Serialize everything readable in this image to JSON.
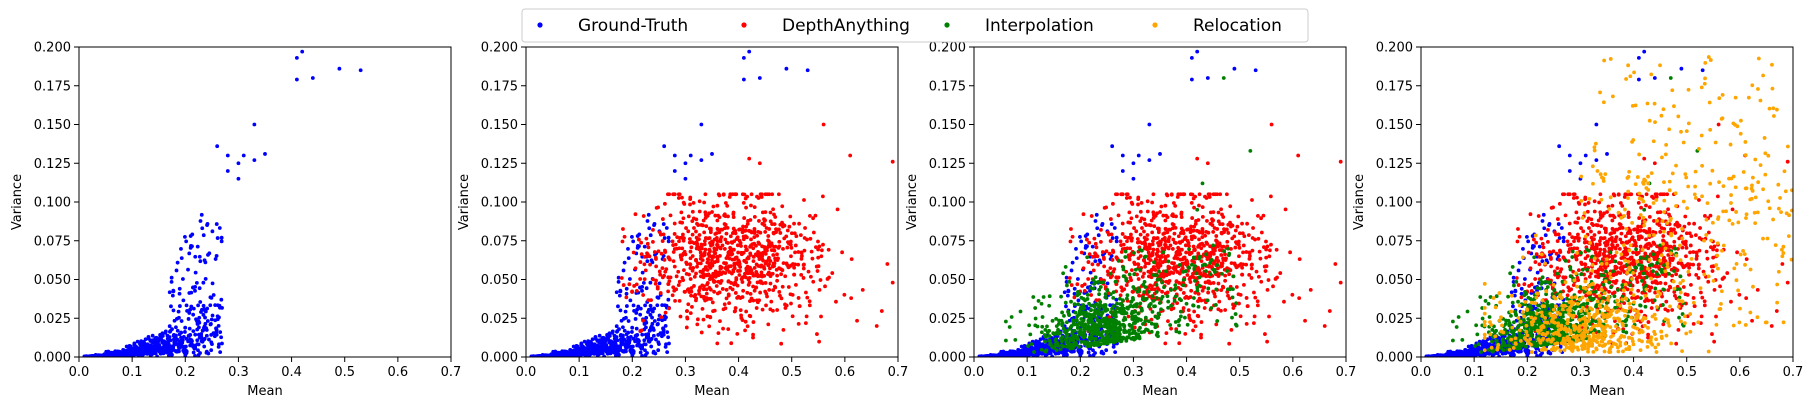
{
  "chart_data": {
    "type": "scatter",
    "layout": "1x4 panels with shared legend at top-center",
    "legend": [
      {
        "name": "Ground-Truth",
        "color": "#0000ff"
      },
      {
        "name": "DepthAnything",
        "color": "#ff0000"
      },
      {
        "name": "Interpolation",
        "color": "#008000"
      },
      {
        "name": "Relocation",
        "color": "#ffa500"
      }
    ],
    "xlabel": "Mean",
    "ylabel": "Variance",
    "xlim": [
      0.0,
      0.7
    ],
    "ylim": [
      0.0,
      0.2
    ],
    "xticks": [
      "0.0",
      "0.1",
      "0.2",
      "0.3",
      "0.4",
      "0.5",
      "0.6",
      "0.7"
    ],
    "yticks": [
      "0.000",
      "0.025",
      "0.050",
      "0.075",
      "0.100",
      "0.125",
      "0.150",
      "0.175",
      "0.200"
    ],
    "series_distribution": {
      "Ground-Truth": {
        "description": "dense cluster near origin rising with mean; sparse outliers",
        "generated_points": 700,
        "x_range": [
          0.01,
          0.27
        ],
        "outliers": [
          [
            0.41,
            0.193
          ],
          [
            0.42,
            0.197
          ],
          [
            0.41,
            0.179
          ],
          [
            0.44,
            0.18
          ],
          [
            0.49,
            0.186
          ],
          [
            0.53,
            0.185
          ],
          [
            0.33,
            0.15
          ],
          [
            0.26,
            0.136
          ],
          [
            0.28,
            0.13
          ],
          [
            0.3,
            0.125
          ],
          [
            0.31,
            0.13
          ],
          [
            0.3,
            0.115
          ],
          [
            0.35,
            0.131
          ],
          [
            0.33,
            0.127
          ],
          [
            0.28,
            0.12
          ]
        ]
      },
      "DepthAnything": {
        "description": "broad cloud centered around mean 0.38, variance 0.06",
        "generated_points": 900,
        "center": [
          0.38,
          0.062
        ]
      },
      "Interpolation": {
        "description": "cluster centered around mean 0.24, variance 0.02",
        "generated_points": 700,
        "center": [
          0.24,
          0.022
        ]
      },
      "Relocation": {
        "description": "wide spread from 0.15 to 0.7, heavy near variance 0.02-0.05 with high-variance tail",
        "generated_points": 800,
        "center": [
          0.36,
          0.045
        ]
      }
    },
    "panels": [
      {
        "series": [
          "Ground-Truth"
        ]
      },
      {
        "series": [
          "Ground-Truth",
          "DepthAnything"
        ]
      },
      {
        "series": [
          "Ground-Truth",
          "DepthAnything",
          "Interpolation"
        ]
      },
      {
        "series": [
          "Ground-Truth",
          "DepthAnything",
          "Interpolation",
          "Relocation"
        ]
      }
    ]
  }
}
